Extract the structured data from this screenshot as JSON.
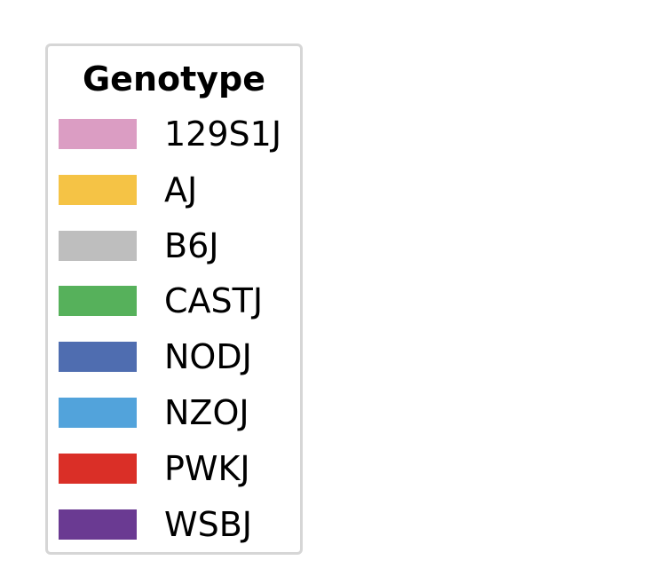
{
  "chart_data": {
    "type": "legend",
    "legend": {
      "title": "Genotype",
      "entries": [
        {
          "label": "129S1J",
          "color": "#DB9DC3"
        },
        {
          "label": "AJ",
          "color": "#F5C345"
        },
        {
          "label": "B6J",
          "color": "#BEBEBE"
        },
        {
          "label": "CASTJ",
          "color": "#56B15B"
        },
        {
          "label": "NODJ",
          "color": "#4F6DB0"
        },
        {
          "label": "NZOJ",
          "color": "#52A3DB"
        },
        {
          "label": "PWKJ",
          "color": "#DA2F27"
        },
        {
          "label": "WSBJ",
          "color": "#6A3A92"
        }
      ]
    }
  }
}
